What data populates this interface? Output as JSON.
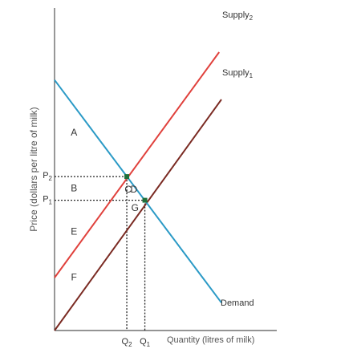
{
  "chart_data": {
    "type": "line",
    "ylabel": "Price (dollars per litre of milk)",
    "xlabel": "Quantity (litres of milk)",
    "xlim": [
      0,
      10
    ],
    "ylim": [
      0,
      10
    ],
    "series": [
      {
        "name": "Supply",
        "sub": "2",
        "color": "#e0413c",
        "x": [
          0,
          7.2
        ],
        "y": [
          1.9,
          10
        ]
      },
      {
        "name": "Supply",
        "sub": "1",
        "color": "#7a2a22",
        "x": [
          0,
          7.3
        ],
        "y": [
          0,
          8.3
        ]
      },
      {
        "name": "Demand",
        "sub": "",
        "color": "#2b9ac6",
        "x": [
          0,
          7.3
        ],
        "y": [
          9,
          1
        ]
      }
    ],
    "equilibria": [
      {
        "x": 3.16,
        "y": 5.53,
        "color": "#1f6f3a"
      },
      {
        "x": 3.95,
        "y": 4.68,
        "color": "#1f6f3a"
      }
    ],
    "price_ticks": [
      {
        "name": "P",
        "sub": "2",
        "y": 5.53
      },
      {
        "name": "P",
        "sub": "1",
        "y": 4.68
      }
    ],
    "quantity_ticks": [
      {
        "name": "Q",
        "sub": "2",
        "x": 3.16
      },
      {
        "name": "Q",
        "sub": "1",
        "x": 3.95
      }
    ],
    "regions": [
      {
        "label": "A",
        "x": 0.85,
        "y": 7.0
      },
      {
        "label": "B",
        "x": 0.85,
        "y": 5.0
      },
      {
        "label": "E",
        "x": 0.85,
        "y": 3.45
      },
      {
        "label": "F",
        "x": 0.85,
        "y": 1.8
      },
      {
        "label": "C",
        "x": 3.22,
        "y": 4.95
      },
      {
        "label": "D",
        "x": 3.47,
        "y": 4.95
      },
      {
        "label": "G",
        "x": 3.52,
        "y": 4.3
      }
    ]
  }
}
